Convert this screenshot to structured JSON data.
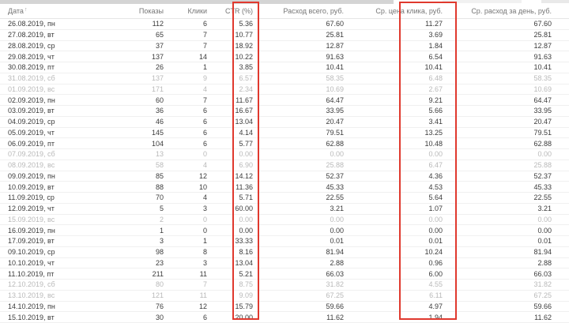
{
  "theme": {
    "highlight_red": "#e0392e",
    "text": "#3b3b3b",
    "muted_text": "#b9b9b9",
    "header_text": "#757575"
  },
  "table": {
    "sort_icon": "↑",
    "columns": [
      {
        "key": "date",
        "label": "Дата"
      },
      {
        "key": "impressions",
        "label": "Показы"
      },
      {
        "key": "clicks",
        "label": "Клики"
      },
      {
        "key": "ctr",
        "label": "CTR (%)"
      },
      {
        "key": "spend",
        "label": "Расход всего, руб."
      },
      {
        "key": "cpc",
        "label": "Ср. цена клика, руб."
      },
      {
        "key": "daily",
        "label": "Ср. расход за день, руб."
      }
    ],
    "rows": [
      {
        "date": "26.08.2019, пн",
        "impressions": "112",
        "clicks": "6",
        "ctr": "5.36",
        "spend": "67.60",
        "cpc": "11.27",
        "daily": "67.60",
        "muted": false
      },
      {
        "date": "27.08.2019, вт",
        "impressions": "65",
        "clicks": "7",
        "ctr": "10.77",
        "spend": "25.81",
        "cpc": "3.69",
        "daily": "25.81",
        "muted": false
      },
      {
        "date": "28.08.2019, ср",
        "impressions": "37",
        "clicks": "7",
        "ctr": "18.92",
        "spend": "12.87",
        "cpc": "1.84",
        "daily": "12.87",
        "muted": false
      },
      {
        "date": "29.08.2019, чт",
        "impressions": "137",
        "clicks": "14",
        "ctr": "10.22",
        "spend": "91.63",
        "cpc": "6.54",
        "daily": "91.63",
        "muted": false
      },
      {
        "date": "30.08.2019, пт",
        "impressions": "26",
        "clicks": "1",
        "ctr": "3.85",
        "spend": "10.41",
        "cpc": "10.41",
        "daily": "10.41",
        "muted": false
      },
      {
        "date": "31.08.2019, сб",
        "impressions": "137",
        "clicks": "9",
        "ctr": "6.57",
        "spend": "58.35",
        "cpc": "6.48",
        "daily": "58.35",
        "muted": true
      },
      {
        "date": "01.09.2019, вс",
        "impressions": "171",
        "clicks": "4",
        "ctr": "2.34",
        "spend": "10.69",
        "cpc": "2.67",
        "daily": "10.69",
        "muted": true
      },
      {
        "date": "02.09.2019, пн",
        "impressions": "60",
        "clicks": "7",
        "ctr": "11.67",
        "spend": "64.47",
        "cpc": "9.21",
        "daily": "64.47",
        "muted": false
      },
      {
        "date": "03.09.2019, вт",
        "impressions": "36",
        "clicks": "6",
        "ctr": "16.67",
        "spend": "33.95",
        "cpc": "5.66",
        "daily": "33.95",
        "muted": false
      },
      {
        "date": "04.09.2019, ср",
        "impressions": "46",
        "clicks": "6",
        "ctr": "13.04",
        "spend": "20.47",
        "cpc": "3.41",
        "daily": "20.47",
        "muted": false
      },
      {
        "date": "05.09.2019, чт",
        "impressions": "145",
        "clicks": "6",
        "ctr": "4.14",
        "spend": "79.51",
        "cpc": "13.25",
        "daily": "79.51",
        "muted": false
      },
      {
        "date": "06.09.2019, пт",
        "impressions": "104",
        "clicks": "6",
        "ctr": "5.77",
        "spend": "62.88",
        "cpc": "10.48",
        "daily": "62.88",
        "muted": false
      },
      {
        "date": "07.09.2019, сб",
        "impressions": "13",
        "clicks": "0",
        "ctr": "0.00",
        "spend": "0.00",
        "cpc": "0.00",
        "daily": "0.00",
        "muted": true
      },
      {
        "date": "08.09.2019, вс",
        "impressions": "58",
        "clicks": "4",
        "ctr": "6.90",
        "spend": "25.88",
        "cpc": "6.47",
        "daily": "25.88",
        "muted": true
      },
      {
        "date": "09.09.2019, пн",
        "impressions": "85",
        "clicks": "12",
        "ctr": "14.12",
        "spend": "52.37",
        "cpc": "4.36",
        "daily": "52.37",
        "muted": false
      },
      {
        "date": "10.09.2019, вт",
        "impressions": "88",
        "clicks": "10",
        "ctr": "11.36",
        "spend": "45.33",
        "cpc": "4.53",
        "daily": "45.33",
        "muted": false
      },
      {
        "date": "11.09.2019, ср",
        "impressions": "70",
        "clicks": "4",
        "ctr": "5.71",
        "spend": "22.55",
        "cpc": "5.64",
        "daily": "22.55",
        "muted": false
      },
      {
        "date": "12.09.2019, чт",
        "impressions": "5",
        "clicks": "3",
        "ctr": "60.00",
        "spend": "3.21",
        "cpc": "1.07",
        "daily": "3.21",
        "muted": false
      },
      {
        "date": "15.09.2019, вс",
        "impressions": "2",
        "clicks": "0",
        "ctr": "0.00",
        "spend": "0.00",
        "cpc": "0.00",
        "daily": "0.00",
        "muted": true
      },
      {
        "date": "16.09.2019, пн",
        "impressions": "1",
        "clicks": "0",
        "ctr": "0.00",
        "spend": "0.00",
        "cpc": "0.00",
        "daily": "0.00",
        "muted": false
      },
      {
        "date": "17.09.2019, вт",
        "impressions": "3",
        "clicks": "1",
        "ctr": "33.33",
        "spend": "0.01",
        "cpc": "0.01",
        "daily": "0.01",
        "muted": false
      },
      {
        "date": "09.10.2019, ср",
        "impressions": "98",
        "clicks": "8",
        "ctr": "8.16",
        "spend": "81.94",
        "cpc": "10.24",
        "daily": "81.94",
        "muted": false
      },
      {
        "date": "10.10.2019, чт",
        "impressions": "23",
        "clicks": "3",
        "ctr": "13.04",
        "spend": "2.88",
        "cpc": "0.96",
        "daily": "2.88",
        "muted": false
      },
      {
        "date": "11.10.2019, пт",
        "impressions": "211",
        "clicks": "11",
        "ctr": "5.21",
        "spend": "66.03",
        "cpc": "6.00",
        "daily": "66.03",
        "muted": false
      },
      {
        "date": "12.10.2019, сб",
        "impressions": "80",
        "clicks": "7",
        "ctr": "8.75",
        "spend": "31.82",
        "cpc": "4.55",
        "daily": "31.82",
        "muted": true
      },
      {
        "date": "13.10.2019, вс",
        "impressions": "121",
        "clicks": "11",
        "ctr": "9.09",
        "spend": "67.25",
        "cpc": "6.11",
        "daily": "67.25",
        "muted": true
      },
      {
        "date": "14.10.2019, пн",
        "impressions": "76",
        "clicks": "12",
        "ctr": "15.79",
        "spend": "59.66",
        "cpc": "4.97",
        "daily": "59.66",
        "muted": false
      },
      {
        "date": "15.10.2019, вт",
        "impressions": "30",
        "clicks": "6",
        "ctr": "20.00",
        "spend": "11.62",
        "cpc": "1.94",
        "daily": "11.62",
        "muted": false
      }
    ]
  },
  "annotations": {
    "highlighted_columns": [
      "CTR (%)",
      "Ср. цена клика, руб."
    ]
  }
}
